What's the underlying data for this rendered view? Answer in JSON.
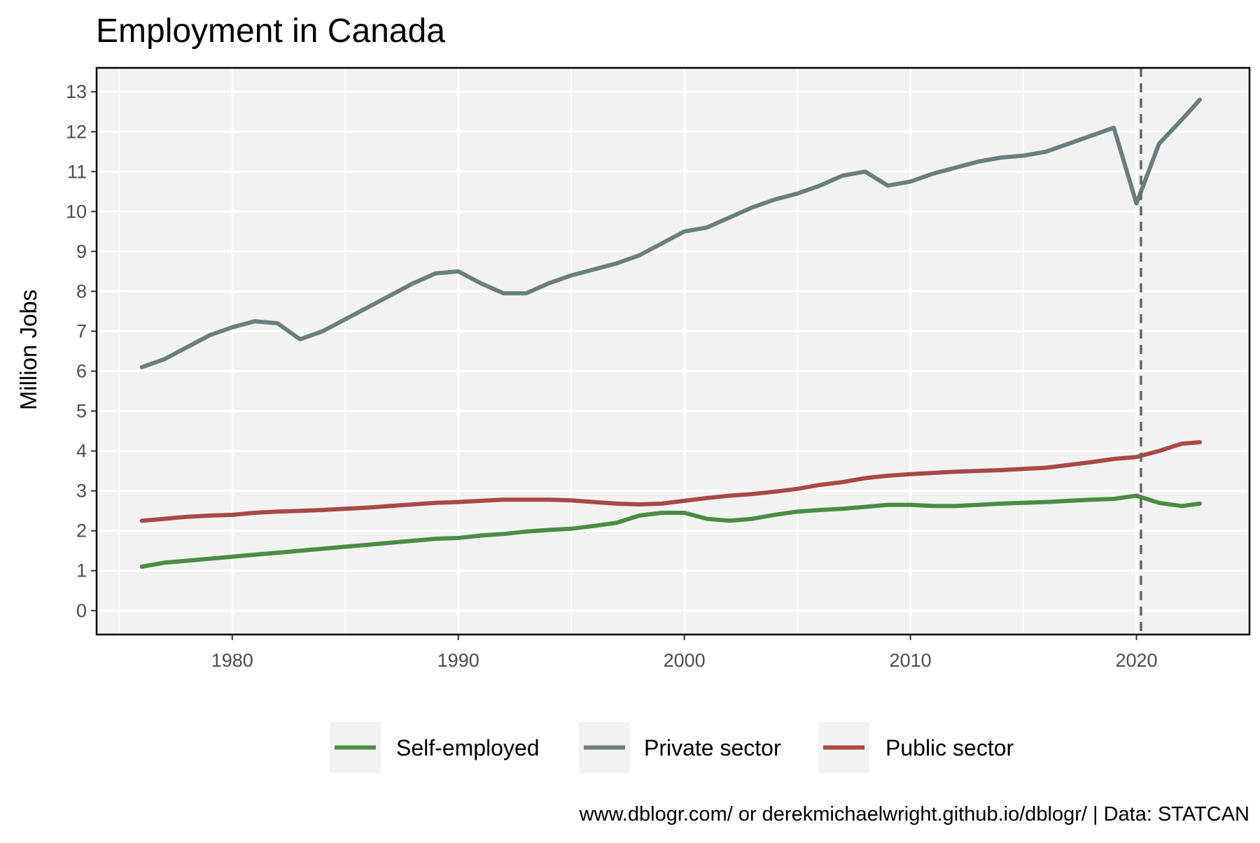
{
  "chart_data": {
    "type": "line",
    "title": "Employment in Canada",
    "xlabel": "",
    "ylabel": "Million Jobs",
    "caption": "www.dblogr.com/ or derekmichaelwright.github.io/dblogr/ | Data: STATCAN",
    "xlim": [
      1974,
      2025
    ],
    "ylim": [
      -0.6,
      13.6
    ],
    "x_ticks": [
      1980,
      1990,
      2000,
      2010,
      2020
    ],
    "y_ticks": [
      0,
      1,
      2,
      3,
      4,
      5,
      6,
      7,
      8,
      9,
      10,
      11,
      12,
      13
    ],
    "grid": true,
    "legend_position": "bottom",
    "annotations": [
      {
        "type": "vline",
        "x": 2020.2,
        "style": "dashed"
      }
    ],
    "series": [
      {
        "name": "Self-employed",
        "color": "#4a8c42",
        "x": [
          1976,
          1977,
          1978,
          1979,
          1980,
          1981,
          1982,
          1983,
          1984,
          1985,
          1986,
          1987,
          1988,
          1989,
          1990,
          1991,
          1992,
          1993,
          1994,
          1995,
          1996,
          1997,
          1998,
          1999,
          2000,
          2001,
          2002,
          2003,
          2004,
          2005,
          2006,
          2007,
          2008,
          2009,
          2010,
          2011,
          2012,
          2013,
          2014,
          2015,
          2016,
          2017,
          2018,
          2019,
          2020,
          2021,
          2022,
          2022.8
        ],
        "values": [
          1.1,
          1.2,
          1.25,
          1.3,
          1.35,
          1.4,
          1.45,
          1.5,
          1.55,
          1.6,
          1.65,
          1.7,
          1.75,
          1.8,
          1.82,
          1.88,
          1.92,
          1.98,
          2.02,
          2.05,
          2.12,
          2.2,
          2.38,
          2.45,
          2.45,
          2.3,
          2.25,
          2.3,
          2.4,
          2.48,
          2.52,
          2.55,
          2.6,
          2.65,
          2.65,
          2.62,
          2.62,
          2.65,
          2.68,
          2.7,
          2.72,
          2.75,
          2.78,
          2.8,
          2.88,
          2.7,
          2.62,
          2.68
        ]
      },
      {
        "name": "Private sector",
        "color": "#6a7e7e",
        "x": [
          1976,
          1977,
          1978,
          1979,
          1980,
          1981,
          1982,
          1983,
          1984,
          1985,
          1986,
          1987,
          1988,
          1989,
          1990,
          1991,
          1992,
          1993,
          1994,
          1995,
          1996,
          1997,
          1998,
          1999,
          2000,
          2001,
          2002,
          2003,
          2004,
          2005,
          2006,
          2007,
          2008,
          2009,
          2010,
          2011,
          2012,
          2013,
          2014,
          2015,
          2016,
          2017,
          2018,
          2019,
          2020,
          2021,
          2022,
          2022.8
        ],
        "values": [
          6.1,
          6.3,
          6.6,
          6.9,
          7.1,
          7.25,
          7.2,
          6.8,
          7.0,
          7.3,
          7.6,
          7.9,
          8.2,
          8.45,
          8.5,
          8.2,
          7.95,
          7.95,
          8.2,
          8.4,
          8.55,
          8.7,
          8.9,
          9.2,
          9.5,
          9.6,
          9.85,
          10.1,
          10.3,
          10.45,
          10.65,
          10.9,
          11.0,
          10.65,
          10.75,
          10.95,
          11.1,
          11.25,
          11.35,
          11.4,
          11.5,
          11.7,
          11.9,
          12.1,
          10.2,
          11.7,
          12.3,
          12.8
        ]
      },
      {
        "name": "Public sector",
        "color": "#a84848",
        "x": [
          1976,
          1977,
          1978,
          1979,
          1980,
          1981,
          1982,
          1983,
          1984,
          1985,
          1986,
          1987,
          1988,
          1989,
          1990,
          1991,
          1992,
          1993,
          1994,
          1995,
          1996,
          1997,
          1998,
          1999,
          2000,
          2001,
          2002,
          2003,
          2004,
          2005,
          2006,
          2007,
          2008,
          2009,
          2010,
          2011,
          2012,
          2013,
          2014,
          2015,
          2016,
          2017,
          2018,
          2019,
          2020,
          2021,
          2022,
          2022.8
        ],
        "values": [
          2.25,
          2.3,
          2.35,
          2.38,
          2.4,
          2.45,
          2.48,
          2.5,
          2.52,
          2.55,
          2.58,
          2.62,
          2.66,
          2.7,
          2.72,
          2.75,
          2.78,
          2.78,
          2.78,
          2.76,
          2.72,
          2.68,
          2.66,
          2.68,
          2.75,
          2.82,
          2.88,
          2.92,
          2.98,
          3.05,
          3.15,
          3.22,
          3.32,
          3.38,
          3.42,
          3.45,
          3.48,
          3.5,
          3.52,
          3.55,
          3.58,
          3.65,
          3.72,
          3.8,
          3.85,
          4.0,
          4.18,
          4.22
        ]
      }
    ]
  }
}
